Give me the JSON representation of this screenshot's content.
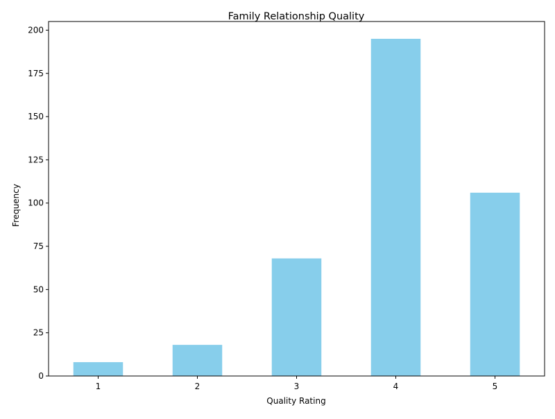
{
  "chart_data": {
    "type": "bar",
    "title": "Family Relationship Quality",
    "xlabel": "Quality Rating",
    "ylabel": "Frequency",
    "categories": [
      "1",
      "2",
      "3",
      "4",
      "5"
    ],
    "values": [
      8,
      18,
      68,
      195,
      106
    ],
    "ylim": [
      0,
      205
    ],
    "yticks": [
      0,
      25,
      50,
      75,
      100,
      125,
      150,
      175,
      200
    ],
    "grid": false,
    "legend": "none",
    "bar_color": "#87ceeb"
  }
}
